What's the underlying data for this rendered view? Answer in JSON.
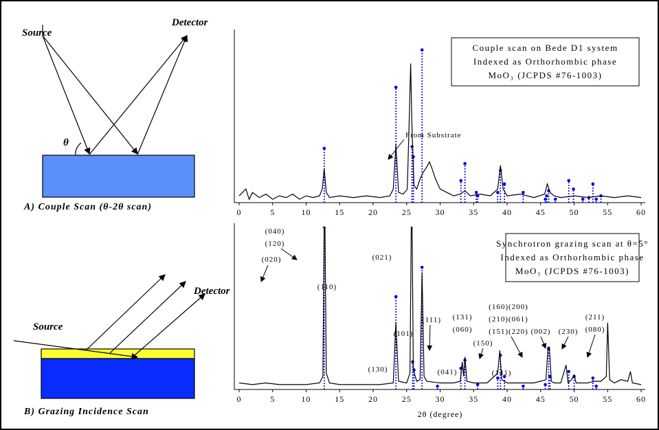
{
  "diagram": {
    "a": {
      "source": "Source",
      "detector": "Detector",
      "angle": "θ",
      "caption": "A) Couple Scan (θ-2θ scan)"
    },
    "b": {
      "source": "Source",
      "detector": "Detector",
      "caption": "B) Grazing Incidence Scan"
    }
  },
  "chart_data": [
    {
      "type": "line",
      "color": "#000000",
      "stick_color": "#0000ee",
      "box_text": [
        "Couple scan on Bede D1 system",
        "Indexed as Orthorhombic phase",
        "MoO₃ (JCPDS #76-1003)"
      ],
      "annotations": [
        "From Substrate"
      ],
      "xlim": [
        0,
        60
      ],
      "ylim": [
        0,
        100
      ],
      "xticks": [
        0,
        5,
        10,
        15,
        20,
        25,
        30,
        35,
        40,
        45,
        50,
        55,
        60
      ],
      "x": [
        0,
        1,
        1.5,
        2,
        3,
        4,
        5,
        6,
        7,
        8,
        9,
        10,
        11,
        12,
        12.4,
        12.7,
        13,
        13.5,
        15,
        17,
        19,
        21,
        22.5,
        23,
        23.4,
        23.8,
        24.5,
        25.1,
        25.4,
        25.6,
        25.8,
        26.1,
        26.5,
        27,
        27.5,
        28,
        28.4,
        28.8,
        29.3,
        30,
        31,
        32,
        33,
        33.7,
        34.5,
        36,
        37.5,
        38.6,
        39,
        39.4,
        40,
        42,
        44,
        45.6,
        46,
        46.4,
        47,
        48,
        50,
        52,
        54,
        56,
        58,
        60
      ],
      "values": [
        4,
        8,
        2,
        6,
        3,
        5,
        2,
        4,
        3,
        5,
        2,
        4,
        3,
        4,
        8,
        20,
        6,
        3,
        4,
        3,
        4,
        3,
        4,
        8,
        34,
        6,
        5,
        8,
        50,
        82,
        45,
        10,
        8,
        14,
        18,
        21,
        24,
        20,
        14,
        8,
        6,
        4,
        5,
        7,
        4,
        5,
        4,
        8,
        22,
        8,
        4,
        5,
        3,
        5,
        11,
        6,
        4,
        3,
        4,
        3,
        4,
        3,
        4,
        3
      ],
      "sticks": {
        "x": [
          12.7,
          23.4,
          25.8,
          26.0,
          27.3,
          33.1,
          33.7,
          35.4,
          35.6,
          38.6,
          39.0,
          39.6,
          42.4,
          45.7,
          45.9,
          46.2,
          47.2,
          49.2,
          49.9,
          51.3,
          52.2,
          52.8,
          53.3,
          54.0
        ],
        "values": [
          32,
          68,
          33,
          27,
          90,
          13,
          23,
          6,
          4,
          6,
          19,
          11,
          6,
          2,
          4,
          7,
          2,
          13,
          8,
          2,
          3,
          11,
          2,
          4
        ]
      }
    },
    {
      "type": "line",
      "color": "#000000",
      "stick_color": "#0000ee",
      "box_text": [
        "Synchrotron grazing scan at θ=5°",
        "Indexed as Orthorhombic phase",
        "MoO₃ (JCPDS #76-1003)"
      ],
      "annotations": [
        "(040)",
        "(120)",
        "(020)",
        "(110)",
        "(021)",
        "(130)",
        "(101)",
        "(111)",
        "(041)",
        "(131)",
        "(060)",
        "(150)",
        "(141)",
        "(160)(200)",
        "(210)(061)",
        "(151)(220)",
        "(002)",
        "(230)",
        "(211)",
        "(080)"
      ],
      "xlabel": "2θ (degree)",
      "xlim": [
        0,
        60
      ],
      "ylim": [
        0,
        100
      ],
      "xticks": [
        0,
        5,
        10,
        15,
        20,
        25,
        30,
        35,
        40,
        45,
        50,
        55,
        60
      ],
      "x": [
        0,
        2,
        4,
        6,
        8,
        10,
        12,
        12.5,
        12.75,
        13,
        13.5,
        15,
        18,
        21,
        23,
        23.4,
        23.8,
        25,
        25.5,
        25.75,
        26,
        26.5,
        27,
        27.3,
        27.6,
        28,
        30,
        32,
        33,
        33.3,
        33.5,
        33.7,
        34,
        35,
        37,
        38.6,
        38.9,
        39.2,
        40,
        42,
        44,
        45.8,
        46.1,
        46.3,
        46.6,
        47,
        48,
        48.8,
        49.1,
        49.6,
        50,
        50.3,
        52,
        53,
        54,
        54.8,
        55,
        55.3,
        56,
        57,
        58,
        58.4,
        58.7,
        60
      ],
      "values": [
        4,
        3,
        4,
        3,
        3,
        3,
        4,
        8,
        130,
        10,
        4,
        3,
        3,
        3,
        4,
        41,
        5,
        4,
        10,
        130,
        12,
        5,
        6,
        72,
        8,
        5,
        4,
        4,
        5,
        17,
        8,
        20,
        5,
        4,
        4,
        10,
        24,
        6,
        4,
        4,
        4,
        6,
        26,
        26,
        5,
        4,
        4,
        15,
        4,
        6,
        9,
        4,
        4,
        5,
        5,
        8,
        41,
        6,
        4,
        6,
        5,
        11,
        4,
        3
      ],
      "sticks": {
        "x": [
          12.7,
          23.4,
          25.9,
          26.1,
          27.3,
          29.6,
          33.1,
          33.7,
          35.6,
          38.6,
          39.0,
          39.6,
          42.4,
          45.7,
          46.2,
          46.4,
          49.2,
          50.0,
          52.8,
          53.3
        ],
        "values": [
          100,
          57,
          17,
          12,
          75,
          2,
          13,
          18,
          3,
          7,
          21,
          8,
          2,
          3,
          25,
          8,
          11,
          8,
          7,
          2
        ]
      }
    }
  ]
}
